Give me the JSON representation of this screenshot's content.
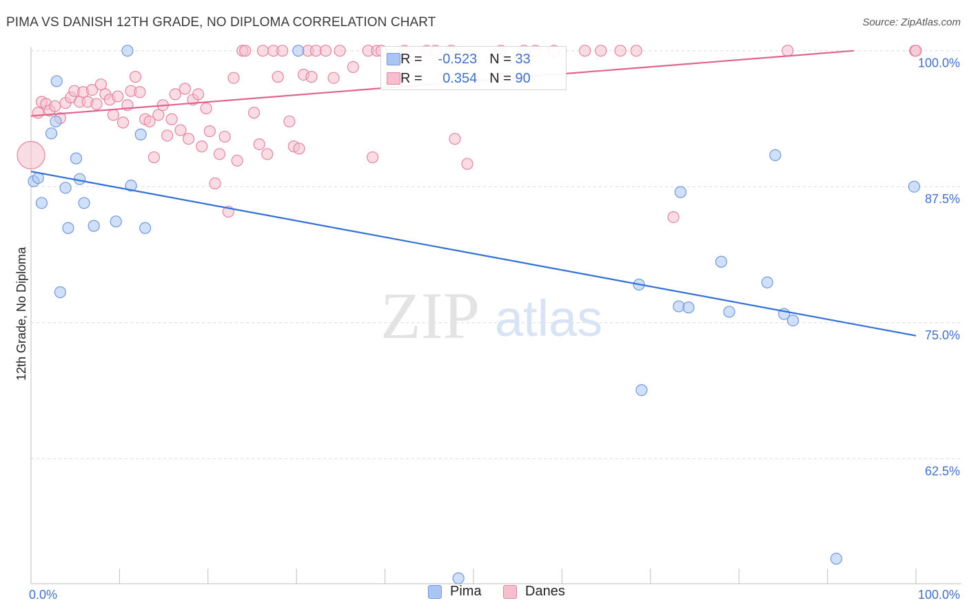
{
  "header": {
    "title": "PIMA VS DANISH 12TH GRADE, NO DIPLOMA CORRELATION CHART",
    "source": "Source: ZipAtlas.com"
  },
  "stats_box": {
    "rows": [
      {
        "r_label": "R =",
        "r_value": "-0.523",
        "n_label": "N =",
        "n_value": "33",
        "color": "#a9c6f2",
        "border": "#6f98dc"
      },
      {
        "r_label": "R =",
        "r_value": "0.354",
        "n_label": "N =",
        "n_value": "90",
        "color": "#f6bfd0",
        "border": "#e3849f"
      }
    ]
  },
  "legend": {
    "items": [
      {
        "label": "Pima",
        "color": "#a9c6f2",
        "border": "#6f98dc"
      },
      {
        "label": "Danes",
        "color": "#f6bfd0",
        "border": "#e3849f"
      }
    ]
  },
  "watermark": {
    "zip": "ZIP",
    "atlas": "atlas"
  },
  "colors": {
    "pima_line": "#2f6fd6",
    "danes_line": "#e0638d",
    "grid": "#d9d9d9",
    "axis_text": "#3f6fc9"
  },
  "chart_data": {
    "type": "scatter",
    "title": "PIMA VS DANISH 12TH GRADE, NO DIPLOMA CORRELATION CHART",
    "xlabel": "",
    "ylabel": "12th Grade, No Diploma",
    "xlim": [
      0,
      100
    ],
    "ylim": [
      51.0,
      101.5
    ],
    "x_tick_labels": [
      "0.0%",
      "100.0%"
    ],
    "y_ticks": [
      62.5,
      75.0,
      87.5,
      100.0
    ],
    "y_tick_labels": [
      "62.5%",
      "75.0%",
      "87.5%",
      "100.0%"
    ],
    "grid": true,
    "legend_position": "bottom",
    "series": [
      {
        "name": "Pima",
        "trend": {
          "x": [
            0,
            100
          ],
          "y": [
            88.9,
            73.8
          ]
        },
        "points": [
          [
            0.3,
            88.0
          ],
          [
            0.8,
            88.3
          ],
          [
            1.2,
            86.0
          ],
          [
            2.3,
            92.4
          ],
          [
            2.8,
            93.5
          ],
          [
            2.9,
            97.2
          ],
          [
            3.3,
            77.8
          ],
          [
            3.9,
            87.4
          ],
          [
            4.2,
            83.7
          ],
          [
            5.1,
            90.1
          ],
          [
            5.5,
            88.2
          ],
          [
            6.0,
            86.0
          ],
          [
            7.1,
            83.9
          ],
          [
            9.6,
            84.3
          ],
          [
            10.9,
            100.0
          ],
          [
            11.3,
            87.6
          ],
          [
            12.4,
            92.3
          ],
          [
            12.9,
            83.7
          ],
          [
            30.2,
            100.0
          ],
          [
            48.3,
            51.5
          ],
          [
            68.7,
            78.5
          ],
          [
            69.0,
            68.8
          ],
          [
            73.2,
            76.5
          ],
          [
            73.4,
            87.0
          ],
          [
            74.3,
            76.4
          ],
          [
            78.0,
            80.6
          ],
          [
            78.9,
            76.0
          ],
          [
            83.2,
            78.7
          ],
          [
            84.1,
            90.4
          ],
          [
            85.1,
            75.8
          ],
          [
            86.1,
            75.2
          ],
          [
            91.0,
            53.3
          ],
          [
            99.8,
            87.5
          ]
        ]
      },
      {
        "name": "Danes",
        "trend": {
          "x": [
            0,
            93
          ],
          "y": [
            94.0,
            100.0
          ]
        },
        "points": [
          [
            0.0,
            90.4
          ],
          [
            0.8,
            94.3
          ],
          [
            1.2,
            95.3
          ],
          [
            1.7,
            95.1
          ],
          [
            2.1,
            94.5
          ],
          [
            2.7,
            94.9
          ],
          [
            3.3,
            93.8
          ],
          [
            3.9,
            95.2
          ],
          [
            4.5,
            95.7
          ],
          [
            4.9,
            96.3
          ],
          [
            5.5,
            95.3
          ],
          [
            5.9,
            96.2
          ],
          [
            6.4,
            95.3
          ],
          [
            6.9,
            96.4
          ],
          [
            7.4,
            95.1
          ],
          [
            7.9,
            96.9
          ],
          [
            8.4,
            96.0
          ],
          [
            8.9,
            95.5
          ],
          [
            9.3,
            94.1
          ],
          [
            9.8,
            95.8
          ],
          [
            10.4,
            93.4
          ],
          [
            10.9,
            95.0
          ],
          [
            11.3,
            96.3
          ],
          [
            11.8,
            97.6
          ],
          [
            12.3,
            96.2
          ],
          [
            12.9,
            93.7
          ],
          [
            13.4,
            93.5
          ],
          [
            13.9,
            90.2
          ],
          [
            14.4,
            94.1
          ],
          [
            14.9,
            95.0
          ],
          [
            15.4,
            92.2
          ],
          [
            15.9,
            93.7
          ],
          [
            16.3,
            96.0
          ],
          [
            16.9,
            92.7
          ],
          [
            17.4,
            96.5
          ],
          [
            17.8,
            91.9
          ],
          [
            18.3,
            95.5
          ],
          [
            18.9,
            96.0
          ],
          [
            19.3,
            91.2
          ],
          [
            19.8,
            94.7
          ],
          [
            20.2,
            92.6
          ],
          [
            20.8,
            87.8
          ],
          [
            21.3,
            90.5
          ],
          [
            21.9,
            92.1
          ],
          [
            22.3,
            85.2
          ],
          [
            22.9,
            97.5
          ],
          [
            23.3,
            89.9
          ],
          [
            23.9,
            100.0
          ],
          [
            24.2,
            100.0
          ],
          [
            25.2,
            94.3
          ],
          [
            25.8,
            91.4
          ],
          [
            26.2,
            100.0
          ],
          [
            26.7,
            90.5
          ],
          [
            27.4,
            100.0
          ],
          [
            27.9,
            97.6
          ],
          [
            28.4,
            100.0
          ],
          [
            29.2,
            93.5
          ],
          [
            29.7,
            91.2
          ],
          [
            30.3,
            91.0
          ],
          [
            30.8,
            97.8
          ],
          [
            31.3,
            100.0
          ],
          [
            31.7,
            97.6
          ],
          [
            32.2,
            100.0
          ],
          [
            33.3,
            100.0
          ],
          [
            34.2,
            97.5
          ],
          [
            34.9,
            100.0
          ],
          [
            36.4,
            98.5
          ],
          [
            38.1,
            100.0
          ],
          [
            38.6,
            90.2
          ],
          [
            39.1,
            100.0
          ],
          [
            39.6,
            100.0
          ],
          [
            40.7,
            98.6
          ],
          [
            42.2,
            100.0
          ],
          [
            44.7,
            100.0
          ],
          [
            45.7,
            100.0
          ],
          [
            47.5,
            100.0
          ],
          [
            47.9,
            91.9
          ],
          [
            49.3,
            89.6
          ],
          [
            53.1,
            100.0
          ],
          [
            55.7,
            100.0
          ],
          [
            57.0,
            100.0
          ],
          [
            59.1,
            100.0
          ],
          [
            62.6,
            100.0
          ],
          [
            64.4,
            100.0
          ],
          [
            66.6,
            100.0
          ],
          [
            68.4,
            100.0
          ],
          [
            72.6,
            84.7
          ],
          [
            85.5,
            100.0
          ],
          [
            99.9,
            100.0
          ],
          [
            100.0,
            100.0
          ]
        ]
      }
    ]
  }
}
